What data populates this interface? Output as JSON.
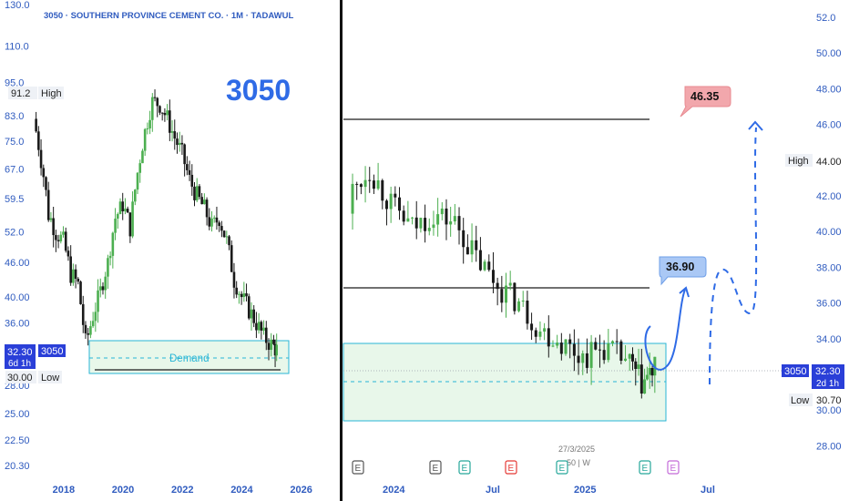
{
  "left_panel": {
    "header": "3050 · SOUTHERN PROVINCE CEMENT CO. · 1M · TADAWUL",
    "big_label": "3050",
    "y_ticks": [
      "130.0",
      "110.0",
      "95.0",
      "83.0",
      "75.0",
      "67.0",
      "59.5",
      "52.0",
      "46.00",
      "40.00",
      "36.00",
      "28.00",
      "25.00",
      "22.50",
      "20.30"
    ],
    "x_ticks": [
      "2018",
      "2020",
      "2022",
      "2024",
      "2026"
    ],
    "high_value": "91.2",
    "high_label": "High",
    "price_value": "32.30",
    "price_sub": "6d 1h",
    "price_symbol": "3050",
    "low_value": "30.00",
    "low_label": "Low",
    "demand_label": "Demand"
  },
  "right_panel": {
    "y_ticks": [
      "52.0",
      "50.00",
      "48.00",
      "46.00",
      "44.00",
      "42.00",
      "40.00",
      "38.00",
      "36.00",
      "34.00",
      "30.00",
      "28.00"
    ],
    "x_ticks": [
      "2024",
      "Jul",
      "2025",
      "Jul"
    ],
    "high_label": "High",
    "high_value": "44.00",
    "price_symbol": "3050",
    "price_value": "32.30",
    "price_sub": "2d 1h",
    "low_label": "Low",
    "low_value": "30.70",
    "target1": "36.90",
    "target2": "46.35",
    "date_note": "27/3/2025",
    "date_note_sub": "50 | W",
    "event_markers": [
      "E",
      "E",
      "E",
      "E",
      "E",
      "E",
      "E"
    ]
  },
  "chart_data": [
    {
      "type": "candlestick",
      "title": "3050 · SOUTHERN PROVINCE CEMENT CO. · 1M · TADAWUL",
      "timeframe": "1M",
      "x_range": [
        2017,
        2026.5
      ],
      "x_ticks": [
        2018,
        2020,
        2022,
        2024,
        2026
      ],
      "y_ticks": [
        130.0,
        110.0,
        95.0,
        83.0,
        75.0,
        67.0,
        59.5,
        52.0,
        46.0,
        40.0,
        36.0,
        28.0,
        25.0,
        22.5,
        20.3
      ],
      "scale": "log",
      "closes": [
        {
          "t": 2017.05,
          "c": 82
        },
        {
          "t": 2017.3,
          "c": 70
        },
        {
          "t": 2017.55,
          "c": 56
        },
        {
          "t": 2017.8,
          "c": 52
        },
        {
          "t": 2018.05,
          "c": 50
        },
        {
          "t": 2018.3,
          "c": 44
        },
        {
          "t": 2018.55,
          "c": 42
        },
        {
          "t": 2018.8,
          "c": 33
        },
        {
          "t": 2019.05,
          "c": 37
        },
        {
          "t": 2019.3,
          "c": 41
        },
        {
          "t": 2019.55,
          "c": 46
        },
        {
          "t": 2019.8,
          "c": 55
        },
        {
          "t": 2020.05,
          "c": 58
        },
        {
          "t": 2020.3,
          "c": 53
        },
        {
          "t": 2020.55,
          "c": 66
        },
        {
          "t": 2020.8,
          "c": 78
        },
        {
          "t": 2021.05,
          "c": 88
        },
        {
          "t": 2021.3,
          "c": 87
        },
        {
          "t": 2021.55,
          "c": 82
        },
        {
          "t": 2021.8,
          "c": 76
        },
        {
          "t": 2022.05,
          "c": 71
        },
        {
          "t": 2022.3,
          "c": 64
        },
        {
          "t": 2022.55,
          "c": 60
        },
        {
          "t": 2022.8,
          "c": 57
        },
        {
          "t": 2023.05,
          "c": 53
        },
        {
          "t": 2023.3,
          "c": 55
        },
        {
          "t": 2023.55,
          "c": 50
        },
        {
          "t": 2023.8,
          "c": 43
        },
        {
          "t": 2024.05,
          "c": 40
        },
        {
          "t": 2024.3,
          "c": 38
        },
        {
          "t": 2024.55,
          "c": 36
        },
        {
          "t": 2024.8,
          "c": 34
        },
        {
          "t": 2025.05,
          "c": 33
        },
        {
          "t": 2025.2,
          "c": 32.3
        }
      ],
      "annotations": {
        "high": 91.2,
        "low": 30.0,
        "last": 32.3,
        "demand_zone": [
          29.8,
          33.8
        ],
        "demand_line": 31.7,
        "support_line": 30.0
      }
    },
    {
      "type": "candlestick",
      "timeframe": "1W",
      "x_range": [
        2023.8,
        2025.85
      ],
      "x_ticks": [
        "2024",
        "Jul",
        "2025",
        "Jul"
      ],
      "y_ticks": [
        52.0,
        50.0,
        48.0,
        46.0,
        44.0,
        42.0,
        40.0,
        38.0,
        36.0,
        34.0,
        30.0,
        28.0
      ],
      "closes": [
        {
          "t": 2023.85,
          "c": 42
        },
        {
          "t": 2023.95,
          "c": 43.5
        },
        {
          "t": 2024.05,
          "c": 41.5
        },
        {
          "t": 2024.15,
          "c": 40.2
        },
        {
          "t": 2024.25,
          "c": 41
        },
        {
          "t": 2024.35,
          "c": 40.5
        },
        {
          "t": 2024.45,
          "c": 38.5
        },
        {
          "t": 2024.55,
          "c": 37
        },
        {
          "t": 2024.65,
          "c": 36
        },
        {
          "t": 2024.75,
          "c": 34.5
        },
        {
          "t": 2024.85,
          "c": 33.8
        },
        {
          "t": 2024.95,
          "c": 33
        },
        {
          "t": 2025.05,
          "c": 33.5
        },
        {
          "t": 2025.15,
          "c": 32.8
        },
        {
          "t": 2025.22,
          "c": 31.5
        },
        {
          "t": 2025.28,
          "c": 32.3
        }
      ],
      "levels": [
        46.35,
        36.9
      ],
      "annotations": {
        "high": 44.0,
        "low": 30.7,
        "last": 32.3,
        "target1": 36.9,
        "target2": 46.35,
        "demand_zone": [
          29.5,
          34.6
        ],
        "demand_line": 31.6
      }
    }
  ],
  "colors": {
    "up": "#4caf50",
    "down": "#1a1a1a",
    "axis": "#2f5bbf",
    "accent": "#2f5bbf",
    "demand": "#29b6d6",
    "target_up": "#aac8f5",
    "target_down": "#f2a7ac"
  }
}
